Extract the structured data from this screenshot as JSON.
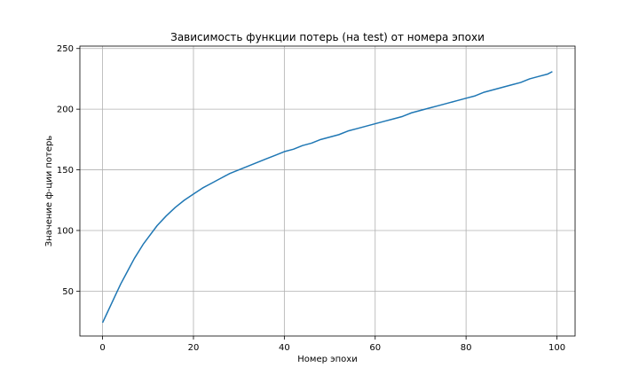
{
  "chart_data": {
    "type": "line",
    "title": "Зависимость функции потерь (на test) от номера эпохи",
    "xlabel": "Номер эпохи",
    "ylabel": "Значение ф-ции потерь",
    "xlim": [
      -5,
      104
    ],
    "ylim": [
      13,
      252
    ],
    "xticks": [
      0,
      20,
      40,
      60,
      80,
      100
    ],
    "yticks": [
      50,
      100,
      150,
      200,
      250
    ],
    "grid": true,
    "line_color": "#1f77b4",
    "series": [
      {
        "x": [
          0,
          1,
          2,
          3,
          4,
          5,
          6,
          7,
          8,
          9,
          10,
          12,
          14,
          16,
          18,
          20,
          22,
          24,
          26,
          28,
          30,
          32,
          34,
          36,
          38,
          40,
          42,
          44,
          46,
          48,
          50,
          52,
          54,
          56,
          58,
          60,
          62,
          64,
          66,
          68,
          70,
          72,
          74,
          76,
          78,
          80,
          82,
          84,
          86,
          88,
          90,
          92,
          94,
          96,
          98,
          99
        ],
        "y": [
          24,
          32,
          40,
          48,
          56,
          63,
          70,
          77,
          83,
          89,
          94,
          104,
          112,
          119,
          125,
          130,
          135,
          139,
          143,
          147,
          150,
          153,
          156,
          159,
          162,
          165,
          167,
          170,
          172,
          175,
          177,
          179,
          182,
          184,
          186,
          188,
          190,
          192,
          194,
          197,
          199,
          201,
          203,
          205,
          207,
          209,
          211,
          214,
          216,
          218,
          220,
          222,
          225,
          227,
          229,
          231
        ]
      }
    ]
  }
}
